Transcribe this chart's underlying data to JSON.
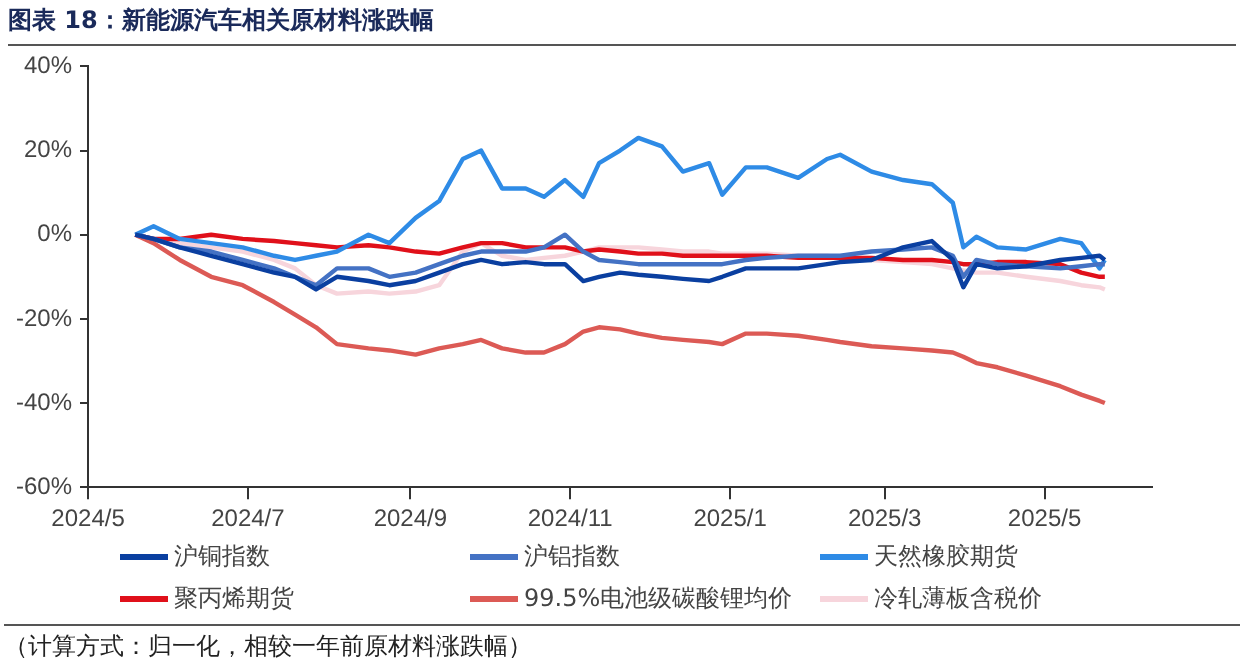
{
  "chart_data": {
    "type": "line",
    "title": "图表 18：新能源汽车相关原材料涨跌幅",
    "annotations": [
      "（计算方式：归一化，相较一年前原材料涨跌幅）"
    ],
    "x": [
      "2024-05-19",
      "2024-05-26",
      "2024-06-05",
      "2024-06-17",
      "2024-06-29",
      "2024-07-11",
      "2024-07-19",
      "2024-07-27",
      "2024-08-04",
      "2024-08-16",
      "2024-08-24",
      "2024-09-03",
      "2024-09-12",
      "2024-09-21",
      "2024-09-28",
      "2024-10-06",
      "2024-10-15",
      "2024-10-22",
      "2024-10-30",
      "2024-11-06",
      "2024-11-12",
      "2024-11-20",
      "2024-11-27",
      "2024-12-06",
      "2024-12-14",
      "2024-12-24",
      "2024-12-29",
      "2025-01-07",
      "2025-01-15",
      "2025-01-27",
      "2025-02-07",
      "2025-02-12",
      "2025-02-24",
      "2025-03-08",
      "2025-03-19",
      "2025-03-27",
      "2025-03-31",
      "2025-04-05",
      "2025-04-13",
      "2025-04-24",
      "2025-05-07",
      "2025-05-15",
      "2025-05-22",
      "2025-05-24"
    ],
    "xlim": [
      "2024-05",
      "2025-06-11"
    ],
    "xticks": [
      {
        "value": "2024-05",
        "label": "2024/5"
      },
      {
        "value": "2024-07",
        "label": "2024/7"
      },
      {
        "value": "2024-09",
        "label": "2024/9"
      },
      {
        "value": "2024-11",
        "label": "2024/11"
      },
      {
        "value": "2025-01",
        "label": "2025/1"
      },
      {
        "value": "2025-03",
        "label": "2025/3"
      },
      {
        "value": "2025-05",
        "label": "2025/5"
      }
    ],
    "ylim": [
      -60,
      40
    ],
    "yticks": [
      {
        "value": -60,
        "label": "-60%"
      },
      {
        "value": -40,
        "label": "-40%"
      },
      {
        "value": -20,
        "label": "-20%"
      },
      {
        "value": 0,
        "label": "0%"
      },
      {
        "value": 20,
        "label": "20%"
      },
      {
        "value": 40,
        "label": "40%"
      }
    ],
    "grid": false,
    "legend": "bottom",
    "marker": "none",
    "line_style": "solid",
    "series": [
      {
        "name": "沪铜指数",
        "color": "#0a3fa0",
        "values": [
          0,
          -1,
          -3,
          -5,
          -7,
          -9,
          -10,
          -13,
          -10,
          -11,
          -12,
          -11,
          -9,
          -7,
          -6,
          -7,
          -6.5,
          -7,
          -7,
          -11,
          -10,
          -9,
          -9.5,
          -10,
          -10.5,
          -11,
          -10,
          -8,
          -8,
          -8,
          -7,
          -6.5,
          -6,
          -3,
          -1.5,
          -6,
          -12.5,
          -7,
          -8,
          -7.5,
          -6,
          -5.5,
          -5,
          -6
        ]
      },
      {
        "name": "沪铝指数",
        "color": "#4472c4",
        "values": [
          0,
          -1,
          -3,
          -4,
          -6,
          -8,
          -10,
          -12,
          -8,
          -8,
          -10,
          -9,
          -7,
          -5,
          -4,
          -4,
          -4,
          -3,
          0,
          -4,
          -6,
          -6.5,
          -7,
          -7,
          -7,
          -7,
          -7,
          -6,
          -5.5,
          -5,
          -5,
          -5,
          -4,
          -3.5,
          -3,
          -5,
          -10,
          -6,
          -7,
          -7.5,
          -8,
          -7.5,
          -7,
          -7
        ]
      },
      {
        "name": "天然橡胶期货",
        "color": "#2e8be6",
        "values": [
          0,
          2,
          -1,
          -2,
          -3,
          -5,
          -6,
          -5,
          -4,
          0,
          -2,
          4,
          8,
          18,
          20,
          11,
          11,
          9,
          13,
          9,
          17,
          20,
          23,
          21,
          15,
          17,
          9.5,
          16,
          16,
          13.5,
          18,
          19,
          15,
          13,
          12,
          7.6,
          -3,
          -0.5,
          -3,
          -3.5,
          -1,
          -2,
          -8,
          -6
        ]
      },
      {
        "name": "聚丙烯期货",
        "color": "#e0101a",
        "values": [
          0,
          -1,
          -1,
          0,
          -1,
          -1.5,
          -2,
          -2.5,
          -3,
          -2.5,
          -3,
          -4,
          -4.5,
          -3,
          -2,
          -2,
          -3,
          -3,
          -3,
          -4,
          -3.5,
          -4,
          -4.5,
          -4.5,
          -5,
          -5,
          -5,
          -5,
          -5,
          -5.5,
          -5.5,
          -5.5,
          -5.5,
          -6,
          -6,
          -6.5,
          -7,
          -7,
          -6.5,
          -6.5,
          -7,
          -9,
          -10,
          -10
        ]
      },
      {
        "name": "99.5%电池级碳酸锂均价",
        "color": "#dc5a55",
        "values": [
          0,
          -2,
          -6,
          -10,
          -12,
          -16,
          -19,
          -22,
          -26,
          -27,
          -27.5,
          -28.5,
          -27,
          -26,
          -25,
          -27,
          -28,
          -28,
          -26,
          -23,
          -22,
          -22.5,
          -23.5,
          -24.5,
          -25,
          -25.5,
          -26,
          -23.5,
          -23.5,
          -24,
          -25,
          -25.5,
          -26.5,
          -27,
          -27.5,
          -28,
          -29,
          -30.5,
          -31.5,
          -33.5,
          -36,
          -38,
          -39.5,
          -40
        ]
      },
      {
        "name": "冷轧薄板含税价",
        "color": "#f7d5dc",
        "values": [
          0,
          -1,
          -2,
          -3,
          -4,
          -6,
          -8,
          -12,
          -14,
          -13.5,
          -14,
          -13.5,
          -12,
          -4,
          -2,
          -5,
          -6,
          -5.5,
          -5,
          -4,
          -3,
          -3,
          -3,
          -3.5,
          -4,
          -4,
          -4.5,
          -4.5,
          -4.5,
          -5,
          -5,
          -5.5,
          -6,
          -6.5,
          -7,
          -8,
          -8.5,
          -9,
          -9,
          -10,
          -11,
          -12,
          -12.5,
          -13
        ]
      }
    ]
  }
}
